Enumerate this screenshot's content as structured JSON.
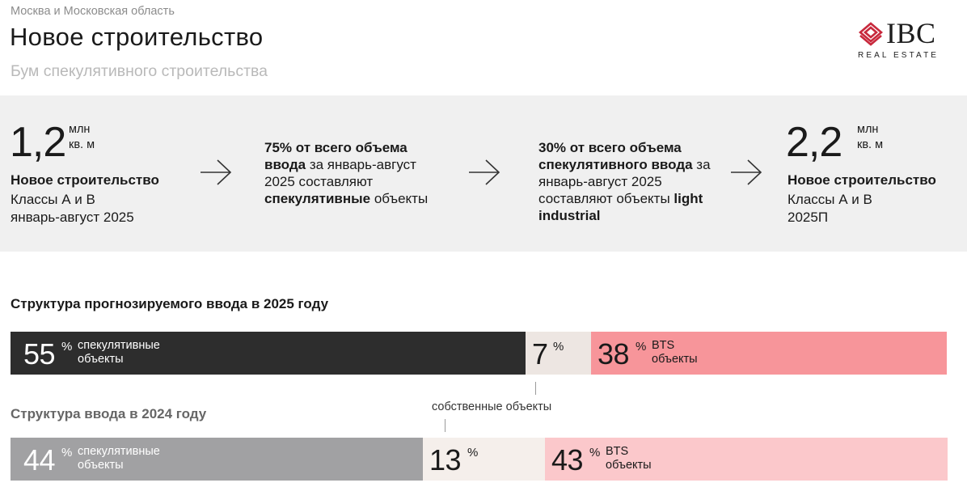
{
  "header": {
    "region": "Москва и Московская область",
    "title": "Новое строительство",
    "subtitle": "Бум спекулятивного строительства"
  },
  "logo": {
    "name": "IBC",
    "tagline": "REAL ESTATE",
    "brand_color": "#c8283c"
  },
  "summary": {
    "stat_left": {
      "value": "1,2",
      "unit": "млн\nкв. м",
      "title": "Новое строительство",
      "line1": "Классы А и В",
      "line2": "январь-август 2025"
    },
    "fact_1": {
      "bold1": "75% от всего объема ввода",
      "text1": " за январь-август 2025 составляют ",
      "bold2": "спекулятивные",
      "text2": " объекты"
    },
    "fact_2": {
      "bold1": "30% от всего объема спекулятивного ввода",
      "text1": " за январь-август 2025 составляют объекты ",
      "bold2": "light industrial",
      "text2": ""
    },
    "stat_right": {
      "value": "2,2",
      "unit": "млн\nкв. м",
      "title": "Новое строительство",
      "line1": "Классы А и В",
      "line2": "2025П"
    }
  },
  "chart_data": [
    {
      "type": "bar",
      "stacked": true,
      "orientation": "horizontal",
      "title": "Структура прогнозируемого ввода в 2025 году",
      "segments": [
        {
          "value": 55,
          "unit": "%",
          "label": "спекулятивные\nобъекты",
          "color": "#2d2d2d",
          "text_color": "#ffffff",
          "label_color": "#ffffff"
        },
        {
          "value": 7,
          "unit": "%",
          "label": "",
          "color": "#ede6e2",
          "text_color": "#1a1a1a",
          "label_color": "#1a1a1a"
        },
        {
          "value": 38,
          "unit": "%",
          "label": "BTS\nобъекты",
          "color": "#f7959a",
          "text_color": "#1a1a1a",
          "label_color": "#1a1a1a"
        }
      ]
    },
    {
      "type": "bar",
      "stacked": true,
      "orientation": "horizontal",
      "title": "Структура ввода в 2024 году",
      "segments": [
        {
          "value": 44,
          "unit": "%",
          "label": "спекулятивные\nобъекты",
          "color": "#a1a1a3",
          "text_color": "#ffffff",
          "label_color": "#ffffff"
        },
        {
          "value": 13,
          "unit": "%",
          "label": "",
          "color": "#f5efeb",
          "text_color": "#1a1a1a",
          "label_color": "#1a1a1a"
        },
        {
          "value": 43,
          "unit": "%",
          "label": "BTS\nобъекты",
          "color": "#fbc8cb",
          "text_color": "#1a1a1a",
          "label_color": "#1a1a1a"
        }
      ]
    }
  ],
  "callout": {
    "label": "собственные объекты"
  }
}
